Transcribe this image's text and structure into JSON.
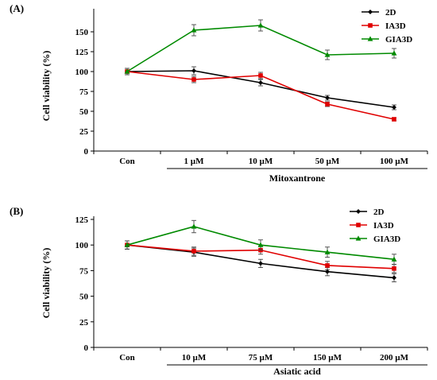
{
  "chart_data": [
    {
      "type": "line",
      "panel_label": "(A)",
      "categories": [
        "Con",
        "1 µM",
        "10 µM",
        "50 µM",
        "100 µM"
      ],
      "group_label": "Mitoxantrone",
      "ylabel": "Cell viability (%)",
      "ylim": [
        0,
        175
      ],
      "yticks": [
        0,
        25,
        50,
        75,
        100,
        125,
        150
      ],
      "grid": false,
      "legend": "top-right",
      "series": [
        {
          "name": "2D",
          "color": "#000000",
          "marker": "diamond",
          "values": [
            100,
            101,
            86,
            67,
            55
          ],
          "errors": [
            4,
            5,
            4,
            3,
            3
          ]
        },
        {
          "name": "IA3D",
          "color": "#e00000",
          "marker": "square",
          "values": [
            100,
            90,
            95,
            59,
            40
          ],
          "errors": [
            4,
            4,
            4,
            3,
            2
          ]
        },
        {
          "name": "GIA3D",
          "color": "#008a00",
          "marker": "triangle",
          "values": [
            100,
            152,
            158,
            121,
            123
          ],
          "errors": [
            4,
            7,
            7,
            6,
            6
          ]
        }
      ]
    },
    {
      "type": "line",
      "panel_label": "(B)",
      "categories": [
        "Con",
        "10 µM",
        "75 µM",
        "150 µM",
        "200 µM"
      ],
      "group_label": "Asiatic acid",
      "ylabel": "Cell viability (%)",
      "ylim": [
        0,
        125
      ],
      "yticks": [
        0,
        25,
        50,
        75,
        100,
        125
      ],
      "grid": false,
      "legend": "top-right",
      "series": [
        {
          "name": "2D",
          "color": "#000000",
          "marker": "diamond",
          "values": [
            100,
            93,
            82,
            74,
            68
          ],
          "errors": [
            4,
            4,
            4,
            4,
            4
          ]
        },
        {
          "name": "IA3D",
          "color": "#e00000",
          "marker": "square",
          "values": [
            100,
            94,
            95,
            80,
            77
          ],
          "errors": [
            4,
            4,
            4,
            4,
            4
          ]
        },
        {
          "name": "GIA3D",
          "color": "#008a00",
          "marker": "triangle",
          "values": [
            100,
            118,
            100,
            93,
            86
          ],
          "errors": [
            4,
            6,
            5,
            5,
            5
          ]
        }
      ]
    }
  ]
}
